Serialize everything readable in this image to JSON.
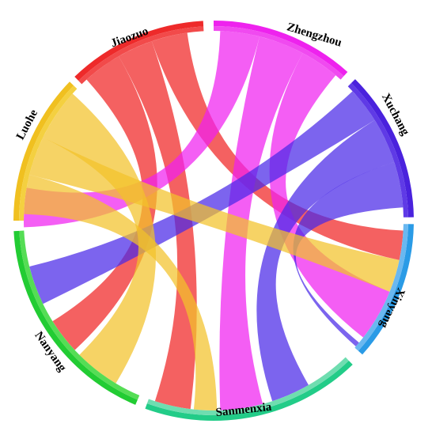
{
  "nodes": [
    {
      "id": "jiaozuo",
      "label": "Jiaozuo",
      "color": "#ee2a2a",
      "inner_color": "#f24a4a"
    },
    {
      "id": "zhengzhou",
      "label": "Zhengzhou",
      "color": "#ee22ee",
      "inner_color": "#f04af0"
    },
    {
      "id": "xuchang",
      "label": "Xuchang",
      "color": "#4a22dd",
      "inner_color": "#5f3ae6"
    },
    {
      "id": "xinyang",
      "label": "Xinyang",
      "color": "#2a9be6",
      "inner_color": "#6ab8f0"
    },
    {
      "id": "sanmenxia",
      "label": "Sanmenxia",
      "color": "#22cc88",
      "inner_color": "#6fddb0"
    },
    {
      "id": "nanyang",
      "label": "Nanyang",
      "color": "#22cc33",
      "inner_color": "#55dd55"
    },
    {
      "id": "luohe",
      "label": "Luohe",
      "color": "#f0c020",
      "inner_color": "#f4d040"
    }
  ],
  "ribbons": [
    {
      "source": "jiaozuo",
      "target": "nanyang",
      "color": "#f02424"
    },
    {
      "source": "jiaozuo",
      "target": "sanmenxia",
      "color": "#f02424"
    },
    {
      "source": "jiaozuo",
      "target": "xinyang",
      "color": "#f02424"
    },
    {
      "source": "zhengzhou",
      "target": "nanyang",
      "color": "#f020f0"
    },
    {
      "source": "zhengzhou",
      "target": "sanmenxia",
      "color": "#f020f0"
    },
    {
      "source": "zhengzhou",
      "target": "xinyang",
      "color": "#f020f0"
    },
    {
      "source": "xuchang",
      "target": "nanyang",
      "color": "#4a28e8"
    },
    {
      "source": "xuchang",
      "target": "sanmenxia",
      "color": "#4a28e8"
    },
    {
      "source": "xuchang",
      "target": "xinyang",
      "color": "#4a28e8"
    },
    {
      "source": "luohe",
      "target": "sanmenxia",
      "color": "#f2c22a"
    },
    {
      "source": "luohe",
      "target": "xinyang",
      "color": "#f2c22a"
    },
    {
      "source": "luohe",
      "target": "nanyang",
      "color": "#f2c22a"
    }
  ]
}
